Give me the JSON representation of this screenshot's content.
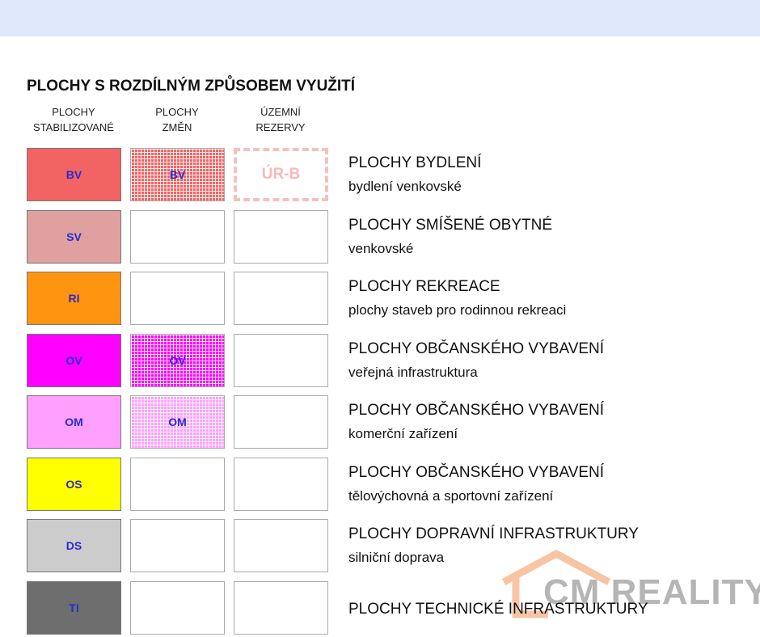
{
  "title": "PLOCHY S ROZDÍLNÝM ZPŮSOBEM VYUŽITÍ",
  "columns": [
    [
      "PLOCHY",
      "STABILIZOVANÉ"
    ],
    [
      "PLOCHY",
      "ZMĚN"
    ],
    [
      "ÚZEMNÍ",
      "REZERVY"
    ]
  ],
  "rows": [
    {
      "code": "BV",
      "color": "#f26464",
      "change": "BV",
      "reserve": "ÚR-B",
      "title": "PLOCHY BYDLENÍ",
      "subtitle": "bydlení venkovské"
    },
    {
      "code": "SV",
      "color": "#e0a0a0",
      "title": "PLOCHY SMÍŠENÉ OBYTNÉ",
      "subtitle": "venkovské"
    },
    {
      "code": "RI",
      "color": "#ff9410",
      "title": "PLOCHY REKREACE",
      "subtitle": "plochy staveb pro rodinnou rekreaci"
    },
    {
      "code": "OV",
      "color": "#ff00ff",
      "change": "OV",
      "title": "PLOCHY OBČANSKÉHO VYBAVENÍ",
      "subtitle": "veřejná infrastruktura"
    },
    {
      "code": "OM",
      "color": "#ffa0ff",
      "change": "OM",
      "title": "PLOCHY OBČANSKÉHO VYBAVENÍ",
      "subtitle": "komerční zařízení"
    },
    {
      "code": "OS",
      "color": "#ffff00",
      "title": "PLOCHY OBČANSKÉHO VYBAVENÍ",
      "subtitle": "tělovýchovná a sportovní zařízení"
    },
    {
      "code": "DS",
      "color": "#cccccc",
      "title": "PLOCHY DOPRAVNÍ INFRASTRUKTURY",
      "subtitle": "silniční doprava"
    },
    {
      "code": "TI",
      "color": "#6e6e6e",
      "title": "PLOCHY TECHNICKÉ INFRASTRUKTURY"
    }
  ],
  "watermark": "CM REALITY"
}
